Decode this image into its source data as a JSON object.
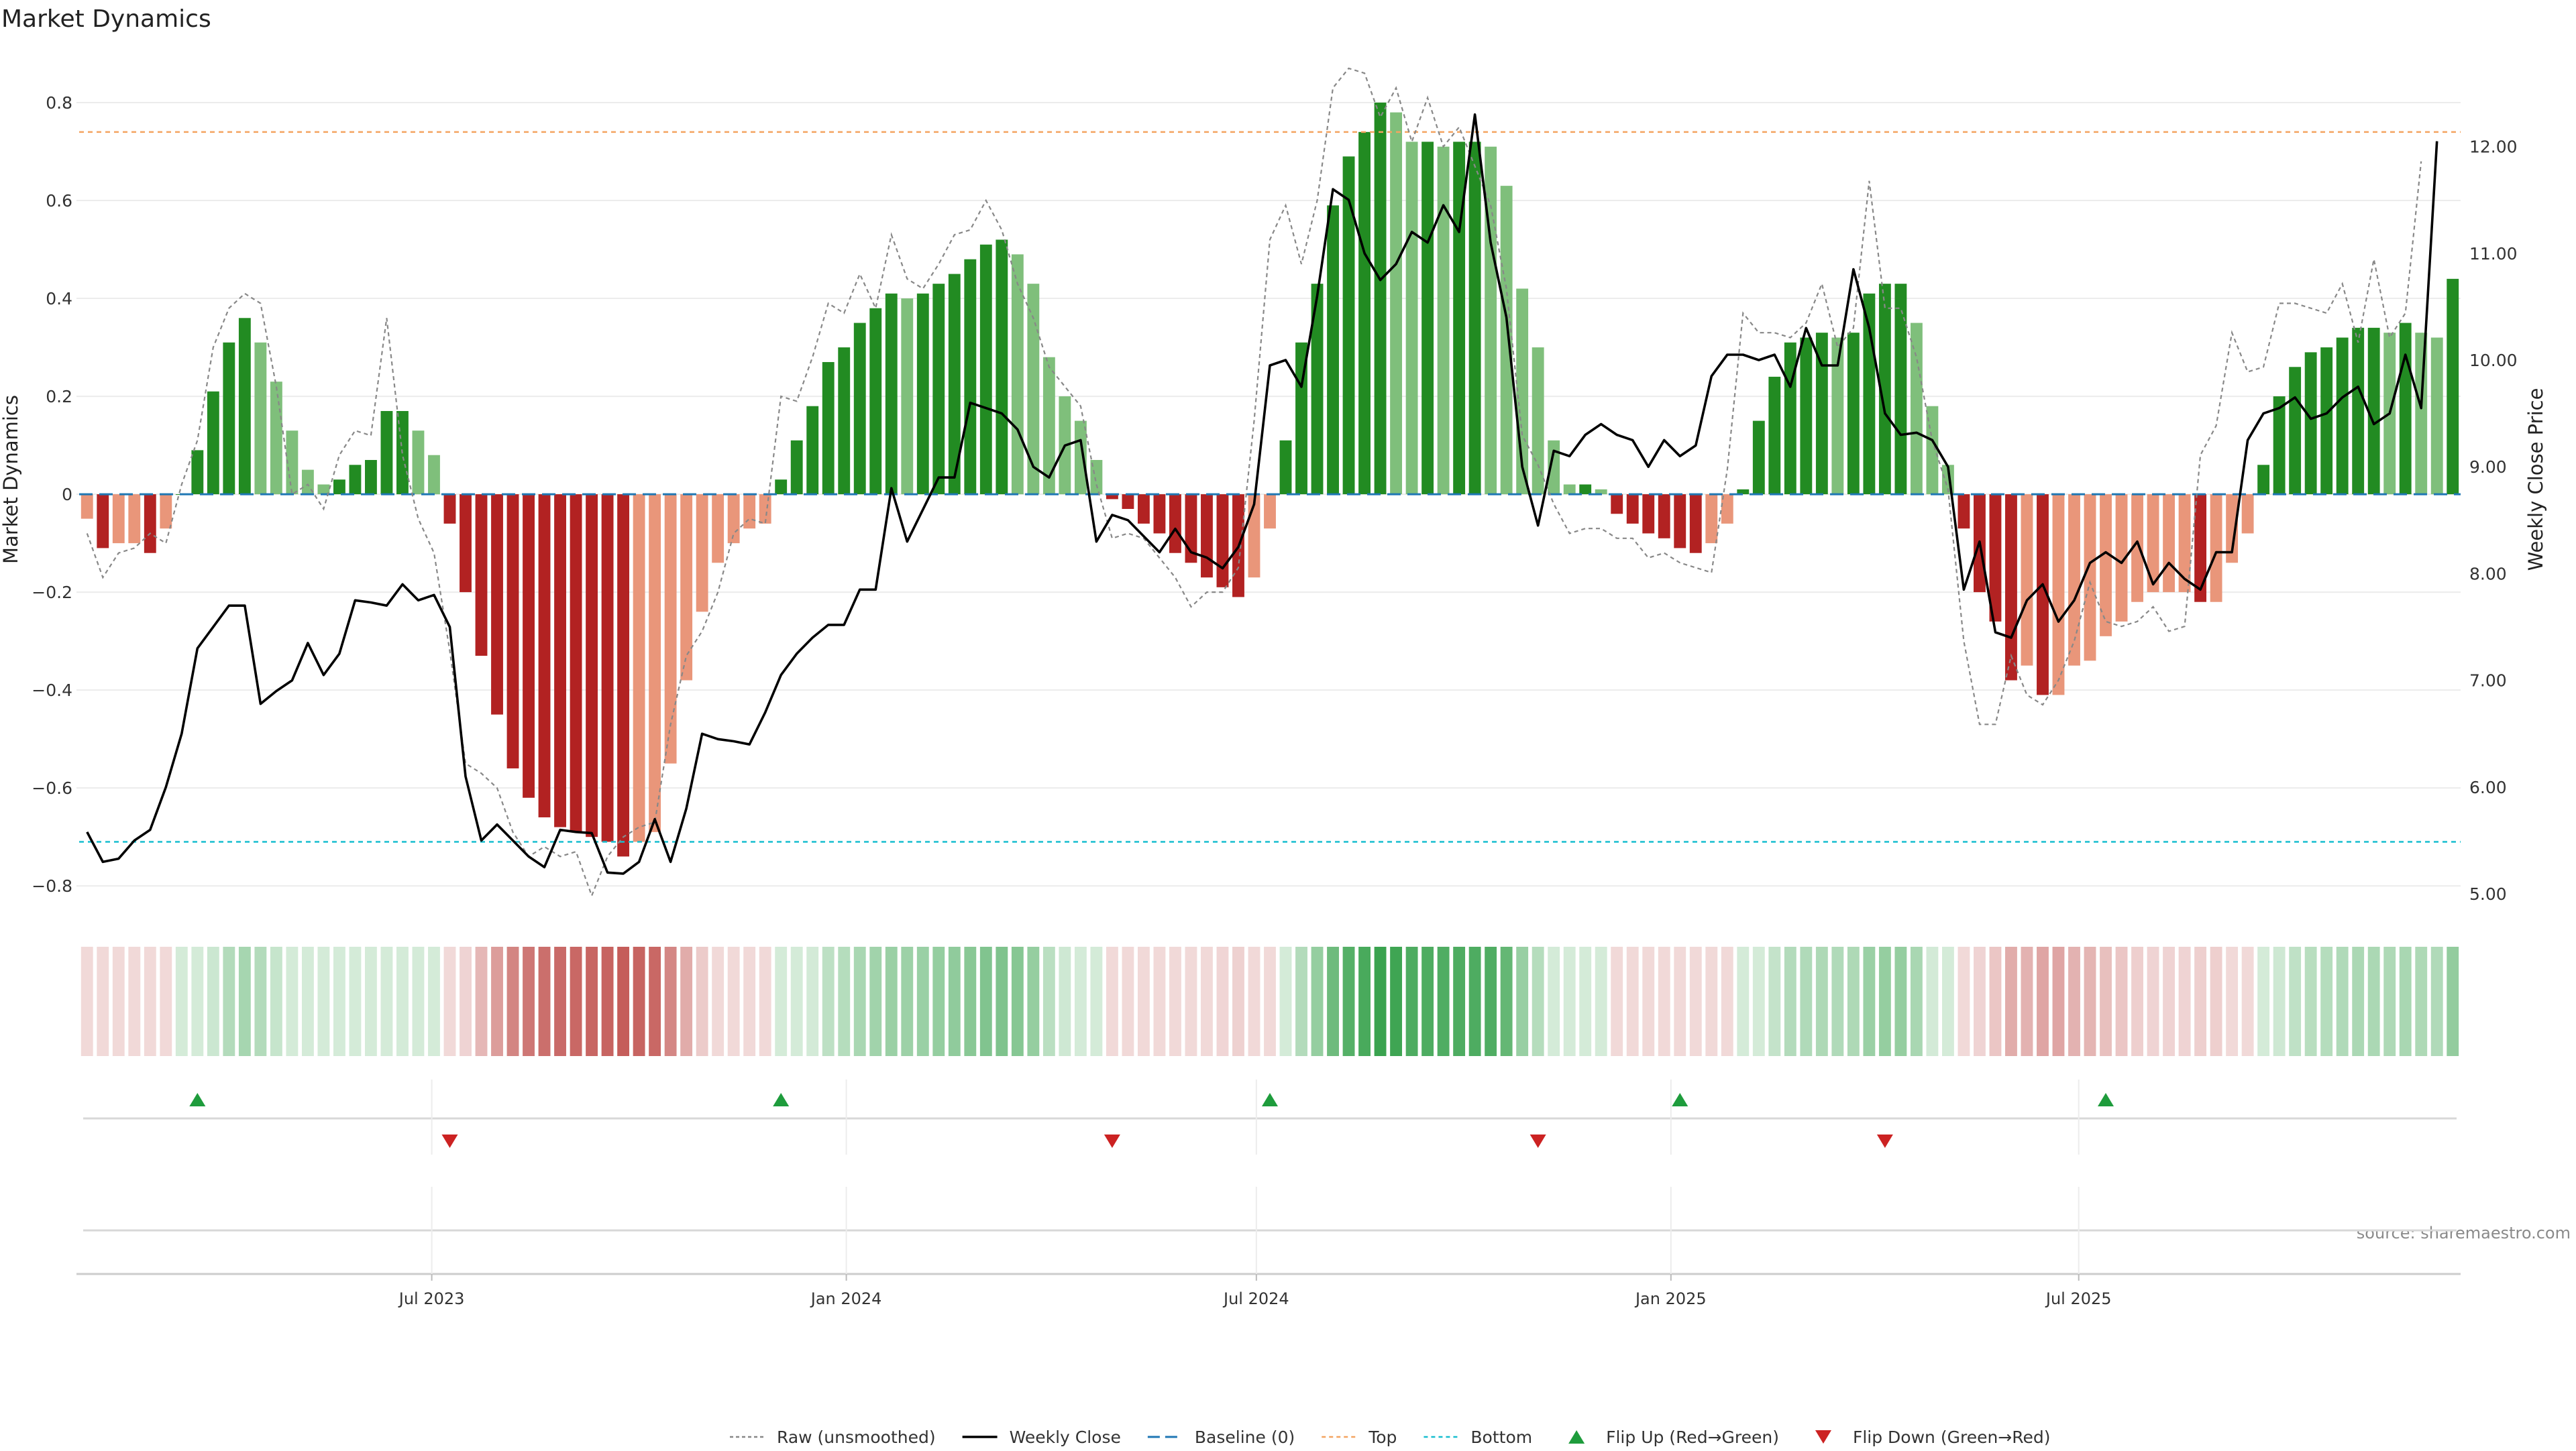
{
  "chart_data": {
    "type": "bar",
    "title": "Market Dynamics",
    "ylabel_left": "Market Dynamics",
    "ylabel_right": "Weekly Close Price",
    "source": "source: sharemaestro.com",
    "ylim_left": [
      -0.86,
      0.9
    ],
    "ylim_right": [
      4.8,
      12.87
    ],
    "yticks_left": [
      "0.8",
      "0.6",
      "0.4",
      "0.2",
      "0",
      "−0.2",
      "−0.4",
      "−0.6",
      "−0.8"
    ],
    "yticks_right": [
      "12.00",
      "11.00",
      "10.00",
      "9.00",
      "8.00",
      "7.00",
      "6.00",
      "5.00"
    ],
    "x_tick_labels": [
      "Jul 2023",
      "Jan 2024",
      "Jul 2024",
      "Jan 2025",
      "Jul 2025"
    ],
    "first_week": "2023-01-29",
    "top_line": 0.74,
    "bottom_line": -0.71,
    "baseline": 0,
    "grid": true,
    "legend_position": "bottom",
    "colors": {
      "strong_green": "#228b22",
      "light_green": "#7fbf7b",
      "strong_red": "#b22222",
      "light_red": "#e9967a",
      "close_line": "#000000",
      "raw_line": "#888888",
      "baseline": "#1f77b4",
      "top": "#f4a460",
      "bottom": "#17becf",
      "flip_up": "#1e9c3c",
      "flip_down": "#cc2222",
      "axis_text": "#333333"
    },
    "series": [
      {
        "name": "Market Dynamics",
        "values": [
          -0.05,
          -0.11,
          -0.1,
          -0.1,
          -0.12,
          -0.07,
          0,
          0.09,
          0.21,
          0.31,
          0.36,
          0.31,
          0.23,
          0.13,
          0.05,
          0.02,
          0.03,
          0.06,
          0.07,
          0.17,
          0.17,
          0.13,
          0.08,
          -0.06,
          -0.2,
          -0.33,
          -0.45,
          -0.56,
          -0.62,
          -0.66,
          -0.68,
          -0.69,
          -0.7,
          -0.71,
          -0.74,
          -0.71,
          -0.69,
          -0.55,
          -0.38,
          -0.24,
          -0.14,
          -0.1,
          -0.07,
          -0.06,
          0.03,
          0.11,
          0.18,
          0.27,
          0.3,
          0.35,
          0.38,
          0.41,
          0.4,
          0.41,
          0.43,
          0.45,
          0.48,
          0.51,
          0.52,
          0.49,
          0.43,
          0.28,
          0.2,
          0.15,
          0.07,
          -0.01,
          -0.03,
          -0.06,
          -0.08,
          -0.12,
          -0.14,
          -0.17,
          -0.19,
          -0.21,
          -0.17,
          -0.07,
          0.11,
          0.31,
          0.43,
          0.59,
          0.69,
          0.74,
          0.8,
          0.78,
          0.72,
          0.72,
          0.71,
          0.72,
          0.72,
          0.71,
          0.63,
          0.42,
          0.3,
          0.11,
          0.02,
          0.02,
          0.01,
          -0.04,
          -0.06,
          -0.08,
          -0.09,
          -0.11,
          -0.12,
          -0.1,
          -0.06,
          0.01,
          0.15,
          0.24,
          0.31,
          0.32,
          0.33,
          0.32,
          0.33,
          0.41,
          0.43,
          0.43,
          0.35,
          0.18,
          0.06,
          -0.07,
          -0.2,
          -0.26,
          -0.38,
          -0.35,
          -0.41,
          -0.41,
          -0.35,
          -0.34,
          -0.29,
          -0.26,
          -0.22,
          -0.2,
          -0.2,
          -0.2,
          -0.22,
          -0.22,
          -0.14,
          -0.08,
          0.06,
          0.2,
          0.26,
          0.29,
          0.3,
          0.32,
          0.34,
          0.34,
          0.33,
          0.35,
          0.33,
          0.32,
          0.44
        ]
      },
      {
        "name": "Raw (unsmoothed)",
        "values": [
          -0.08,
          -0.17,
          -0.12,
          -0.11,
          -0.08,
          -0.1,
          0.02,
          0.11,
          0.3,
          0.38,
          0.41,
          0.39,
          0.22,
          0.0,
          0.02,
          -0.03,
          0.08,
          0.13,
          0.12,
          0.36,
          0.08,
          -0.05,
          -0.12,
          -0.32,
          -0.55,
          -0.57,
          -0.6,
          -0.69,
          -0.74,
          -0.72,
          -0.74,
          -0.73,
          -0.82,
          -0.74,
          -0.7,
          -0.68,
          -0.67,
          -0.47,
          -0.33,
          -0.28,
          -0.2,
          -0.08,
          -0.05,
          -0.06,
          0.2,
          0.19,
          0.28,
          0.39,
          0.37,
          0.45,
          0.38,
          0.53,
          0.44,
          0.42,
          0.47,
          0.53,
          0.54,
          0.6,
          0.54,
          0.43,
          0.36,
          0.26,
          0.22,
          0.18,
          0.02,
          -0.09,
          -0.08,
          -0.09,
          -0.13,
          -0.17,
          -0.23,
          -0.2,
          -0.2,
          -0.15,
          0.15,
          0.52,
          0.59,
          0.47,
          0.6,
          0.83,
          0.87,
          0.86,
          0.77,
          0.83,
          0.72,
          0.81,
          0.71,
          0.75,
          0.67,
          0.59,
          0.42,
          0.12,
          0.06,
          -0.02,
          -0.08,
          -0.07,
          -0.07,
          -0.09,
          -0.09,
          -0.13,
          -0.12,
          -0.14,
          -0.15,
          -0.16,
          0.05,
          0.37,
          0.33,
          0.33,
          0.32,
          0.35,
          0.43,
          0.3,
          0.34,
          0.64,
          0.38,
          0.38,
          0.28,
          0.11,
          0.01,
          -0.3,
          -0.47,
          -0.47,
          -0.33,
          -0.41,
          -0.43,
          -0.38,
          -0.3,
          -0.18,
          -0.26,
          -0.27,
          -0.26,
          -0.23,
          -0.28,
          -0.27,
          0.08,
          0.14,
          0.33,
          0.25,
          0.26,
          0.39,
          0.39,
          0.38,
          0.37,
          0.43,
          0.31,
          0.48,
          0.32,
          0.37,
          0.68
        ]
      },
      {
        "name": "Weekly Close",
        "values": [
          5.58,
          5.3,
          5.33,
          5.5,
          5.6,
          6.0,
          6.5,
          7.3,
          7.5,
          7.7,
          7.7,
          6.78,
          6.9,
          7.0,
          7.35,
          7.05,
          7.25,
          7.75,
          7.73,
          7.7,
          7.9,
          7.75,
          7.8,
          7.5,
          6.1,
          5.5,
          5.65,
          5.5,
          5.35,
          5.25,
          5.6,
          5.58,
          5.57,
          5.2,
          5.19,
          5.3,
          5.7,
          5.3,
          5.8,
          6.5,
          6.45,
          6.43,
          6.4,
          6.7,
          7.05,
          7.25,
          7.4,
          7.52,
          7.52,
          7.85,
          7.85,
          8.8,
          8.3,
          8.6,
          8.9,
          8.9,
          9.6,
          9.55,
          9.5,
          9.35,
          9.0,
          8.9,
          9.2,
          9.25,
          8.3,
          8.55,
          8.5,
          8.35,
          8.2,
          8.42,
          8.2,
          8.15,
          8.05,
          8.25,
          8.65,
          9.95,
          10.0,
          9.75,
          10.6,
          11.6,
          11.5,
          11.0,
          10.75,
          10.9,
          11.2,
          11.1,
          11.45,
          11.2,
          12.3,
          11.1,
          10.4,
          9.0,
          8.45,
          9.15,
          9.1,
          9.3,
          9.4,
          9.3,
          9.25,
          9.0,
          9.25,
          9.1,
          9.2,
          9.85,
          10.05,
          10.05,
          10.0,
          10.05,
          9.75,
          10.3,
          9.95,
          9.95,
          10.85,
          10.3,
          9.5,
          9.3,
          9.32,
          9.25,
          9.0,
          7.85,
          8.3,
          7.45,
          7.4,
          7.75,
          7.9,
          7.55,
          7.75,
          8.1,
          8.2,
          8.1,
          8.3,
          7.9,
          8.1,
          7.95,
          7.85,
          8.2,
          8.2,
          9.25,
          9.5,
          9.55,
          9.65,
          9.45,
          9.5,
          9.65,
          9.75,
          9.4,
          9.5,
          10.05,
          9.55,
          12.05
        ]
      }
    ],
    "flips": [
      {
        "week": 7,
        "direction": "up"
      },
      {
        "week": 23,
        "direction": "down"
      },
      {
        "week": 44,
        "direction": "up"
      },
      {
        "week": 65,
        "direction": "down"
      },
      {
        "week": 75,
        "direction": "up"
      },
      {
        "week": 92,
        "direction": "down"
      },
      {
        "week": 101,
        "direction": "up"
      },
      {
        "week": 114,
        "direction": "down"
      },
      {
        "week": 128,
        "direction": "up"
      }
    ],
    "legend": [
      {
        "label": "Raw (unsmoothed)",
        "style": "raw"
      },
      {
        "label": "Weekly Close",
        "style": "close"
      },
      {
        "label": "Baseline (0)",
        "style": "baseline"
      },
      {
        "label": "Top",
        "style": "top"
      },
      {
        "label": "Bottom",
        "style": "bottom"
      },
      {
        "label": "Flip Up (Red→Green)",
        "style": "flip-up"
      },
      {
        "label": "Flip Down (Green→Red)",
        "style": "flip-down"
      }
    ]
  }
}
